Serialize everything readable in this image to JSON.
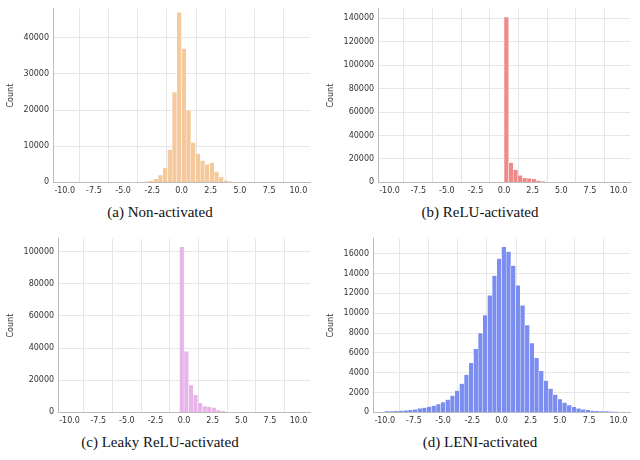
{
  "chart_data": [
    {
      "type": "histogram",
      "title": "(a) Non-activated",
      "y_label": "Count",
      "color": "#f5c99b",
      "grid": true,
      "bins": [
        -10,
        -9.6,
        -9.2,
        -8.8,
        -8.4,
        -8,
        -7.6,
        -7.2,
        -6.8,
        -6.4,
        -6,
        -5.6,
        -5.2,
        -4.8,
        -4.4,
        -4,
        -3.6,
        -3.2,
        -2.8,
        -2.4,
        -2,
        -1.6,
        -1.2,
        -0.8,
        -0.4,
        0,
        0.4,
        0.8,
        1.2,
        1.6,
        2,
        2.4,
        2.8,
        3.2,
        3.6,
        4,
        4.4,
        4.8,
        5.2,
        5.6,
        6,
        6.4,
        6.8,
        7.2,
        7.6,
        8,
        8.4,
        8.8,
        9.2,
        9.6,
        10
      ],
      "values": [
        0,
        0,
        0,
        0,
        0,
        0,
        0,
        0,
        0,
        0,
        0,
        0,
        0,
        0,
        20,
        50,
        100,
        200,
        500,
        1000,
        2000,
        4000,
        9000,
        25000,
        47000,
        37000,
        20000,
        11000,
        8000,
        6000,
        5000,
        5500,
        3000,
        1500,
        600,
        200,
        80,
        30,
        0,
        0,
        0,
        0,
        0,
        0,
        0,
        0,
        0,
        0,
        0,
        0
      ],
      "xlim": [
        -11,
        11
      ],
      "xticks": [
        {
          "value": -10,
          "label": "-10.0"
        },
        -7.5,
        {
          "value": -5,
          "label": "-5.0"
        },
        -2.5,
        {
          "value": 0,
          "label": "0.0"
        },
        2.5,
        {
          "value": 5,
          "label": "5.0"
        },
        7.5,
        {
          "value": 10,
          "label": "10.0"
        }
      ],
      "ylim": [
        0,
        48000
      ],
      "yticks": [
        0,
        10000,
        20000,
        30000,
        40000
      ]
    },
    {
      "type": "histogram",
      "title": "(b) ReLU-activated",
      "y_label": "Count",
      "color": "#f08a8a",
      "grid": true,
      "bins": [
        -10,
        -9.6,
        -9.2,
        -8.8,
        -8.4,
        -8,
        -7.6,
        -7.2,
        -6.8,
        -6.4,
        -6,
        -5.6,
        -5.2,
        -4.8,
        -4.4,
        -4,
        -3.6,
        -3.2,
        -2.8,
        -2.4,
        -2,
        -1.6,
        -1.2,
        -0.8,
        -0.4,
        0,
        0.4,
        0.8,
        1.2,
        1.6,
        2,
        2.4,
        2.8,
        3.2,
        3.6,
        4,
        4.4,
        4.8,
        5.2,
        5.6,
        6,
        6.4,
        6.8,
        7.2,
        7.6,
        8,
        8.4,
        8.8,
        9.2,
        9.6,
        10
      ],
      "values": [
        0,
        0,
        0,
        0,
        0,
        0,
        0,
        0,
        0,
        0,
        0,
        0,
        0,
        0,
        0,
        0,
        0,
        0,
        0,
        0,
        0,
        0,
        0,
        0,
        0,
        141000,
        17000,
        11000,
        6000,
        4000,
        3500,
        3000,
        1500,
        800,
        300,
        100,
        0,
        0,
        0,
        0,
        0,
        0,
        0,
        0,
        0,
        0,
        0,
        0,
        0,
        0
      ],
      "xlim": [
        -11,
        11
      ],
      "xticks": [
        {
          "value": -10,
          "label": "-10.0"
        },
        -7.5,
        {
          "value": -5,
          "label": "-5.0"
        },
        -2.5,
        {
          "value": 0,
          "label": "0.0"
        },
        2.5,
        {
          "value": 5,
          "label": "5.0"
        },
        7.5,
        {
          "value": 10,
          "label": "10.0"
        }
      ],
      "ylim": [
        0,
        148000
      ],
      "yticks": [
        0,
        20000,
        40000,
        60000,
        80000,
        100000,
        120000,
        140000
      ]
    },
    {
      "type": "histogram",
      "title": "(c) Leaky ReLU-activated",
      "y_label": "Count",
      "color": "#e8b5ea",
      "grid": true,
      "bins": [
        -10,
        -9.6,
        -9.2,
        -8.8,
        -8.4,
        -8,
        -7.6,
        -7.2,
        -6.8,
        -6.4,
        -6,
        -5.6,
        -5.2,
        -4.8,
        -4.4,
        -4,
        -3.6,
        -3.2,
        -2.8,
        -2.4,
        -2,
        -1.6,
        -1.2,
        -0.8,
        -0.4,
        0,
        0.4,
        0.8,
        1.2,
        1.6,
        2,
        2.4,
        2.8,
        3.2,
        3.6,
        4,
        4.4,
        4.8,
        5.2,
        5.6,
        6,
        6.4,
        6.8,
        7.2,
        7.6,
        8,
        8.4,
        8.8,
        9.2,
        9.6,
        10
      ],
      "values": [
        0,
        0,
        0,
        0,
        0,
        0,
        0,
        0,
        0,
        0,
        0,
        0,
        0,
        0,
        0,
        0,
        0,
        0,
        0,
        0,
        0,
        0,
        0,
        0,
        103000,
        38000,
        17000,
        11000,
        6000,
        4000,
        3500,
        3000,
        1500,
        800,
        300,
        100,
        0,
        0,
        0,
        0,
        0,
        0,
        0,
        0,
        0,
        0,
        0,
        0,
        0,
        0
      ],
      "xlim": [
        -11,
        11
      ],
      "xticks": [
        {
          "value": -10,
          "label": "-10.0"
        },
        -7.5,
        {
          "value": -5,
          "label": "-5.0"
        },
        -2.5,
        {
          "value": 0,
          "label": "0.0"
        },
        2.5,
        {
          "value": 5,
          "label": "5.0"
        },
        7.5,
        {
          "value": 10,
          "label": "10.0"
        }
      ],
      "ylim": [
        0,
        108000
      ],
      "yticks": [
        0,
        20000,
        40000,
        60000,
        80000,
        100000
      ]
    },
    {
      "type": "histogram",
      "title": "(d) LENI-activated",
      "y_label": "Count",
      "color": "#7b8ef0",
      "grid": true,
      "bins": [
        -10,
        -9.6,
        -9.2,
        -8.8,
        -8.4,
        -8,
        -7.6,
        -7.2,
        -6.8,
        -6.4,
        -6,
        -5.6,
        -5.2,
        -4.8,
        -4.4,
        -4,
        -3.6,
        -3.2,
        -2.8,
        -2.4,
        -2,
        -1.6,
        -1.2,
        -0.8,
        -0.4,
        0,
        0.4,
        0.8,
        1.2,
        1.6,
        2,
        2.4,
        2.8,
        3.2,
        3.6,
        4,
        4.4,
        4.8,
        5.2,
        5.6,
        6,
        6.4,
        6.8,
        7.2,
        7.6,
        8,
        8.4,
        8.8,
        9.2,
        9.6,
        10
      ],
      "values": [
        100,
        120,
        150,
        180,
        220,
        260,
        320,
        400,
        480,
        580,
        700,
        850,
        1050,
        1300,
        1700,
        2200,
        2900,
        3800,
        5000,
        6400,
        8000,
        9800,
        11800,
        13800,
        15500,
        16700,
        16200,
        14800,
        12800,
        10800,
        8800,
        7000,
        5500,
        4200,
        3200,
        2400,
        1800,
        1350,
        1000,
        750,
        560,
        420,
        320,
        250,
        190,
        150,
        120,
        100,
        80,
        60
      ],
      "xlim": [
        -11,
        11
      ],
      "xticks": [
        {
          "value": -10,
          "label": "-10.0"
        },
        -7.5,
        {
          "value": -5,
          "label": "-5.0"
        },
        -2.5,
        {
          "value": 0,
          "label": "0.0"
        },
        2.5,
        {
          "value": 5,
          "label": "5.0"
        },
        7.5,
        {
          "value": 10,
          "label": "10.0"
        }
      ],
      "ylim": [
        0,
        17500
      ],
      "yticks": [
        0,
        2000,
        4000,
        6000,
        8000,
        10000,
        12000,
        14000,
        16000
      ]
    }
  ]
}
